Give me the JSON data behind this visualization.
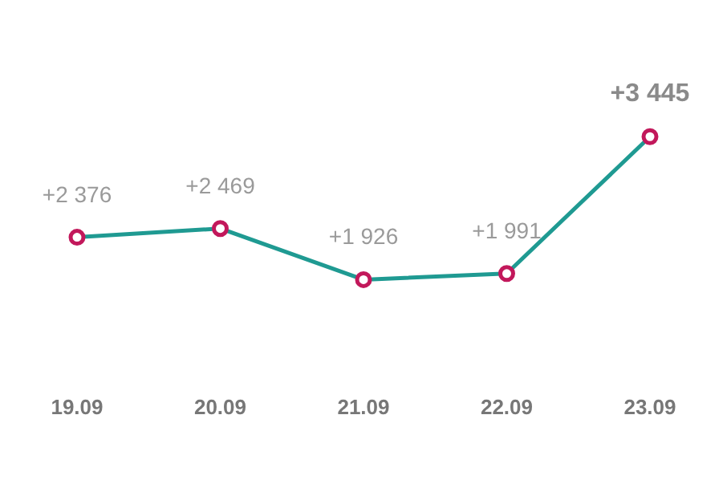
{
  "chart_data": {
    "type": "line",
    "categories": [
      "19.09",
      "20.09",
      "21.09",
      "22.09",
      "23.09"
    ],
    "series": [
      {
        "color": "#1f9a92",
        "values": [
          2376,
          2469,
          1926,
          1991,
          3445
        ],
        "value_labels": [
          "+2 376",
          "+2 469",
          "+1 926",
          "+1 991",
          "+3 445"
        ]
      }
    ],
    "marker": "circle",
    "grid": false,
    "legend": false,
    "tick_labels": "x"
  }
}
